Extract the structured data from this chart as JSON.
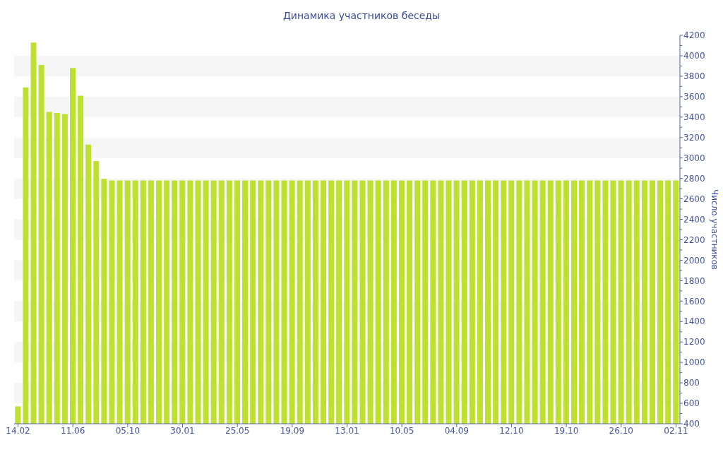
{
  "chart_data": {
    "type": "bar",
    "title": "Динамика участников беседы",
    "ylabel": "Число участников",
    "categories": [
      "14.02",
      null,
      null,
      null,
      null,
      null,
      null,
      "11.06",
      null,
      null,
      null,
      null,
      null,
      null,
      "05.10",
      null,
      null,
      null,
      null,
      null,
      null,
      "30.01",
      null,
      null,
      null,
      null,
      null,
      null,
      "25.05",
      null,
      null,
      null,
      null,
      null,
      null,
      "19.09",
      null,
      null,
      null,
      null,
      null,
      null,
      "13.01",
      null,
      null,
      null,
      null,
      null,
      null,
      "10.05",
      null,
      null,
      null,
      null,
      null,
      null,
      "04.09",
      null,
      null,
      null,
      null,
      null,
      null,
      "12.10",
      null,
      null,
      null,
      null,
      null,
      null,
      "19.10",
      null,
      null,
      null,
      null,
      null,
      null,
      "26.10",
      null,
      null,
      null,
      null,
      null,
      null,
      "02.11"
    ],
    "values": [
      570,
      3690,
      4130,
      3910,
      3450,
      3440,
      3430,
      3880,
      3610,
      3130,
      2970,
      2795,
      2780,
      2780,
      2780,
      2780,
      2780,
      2780,
      2780,
      2780,
      2780,
      2780,
      2780,
      2780,
      2780,
      2780,
      2780,
      2780,
      2780,
      2780,
      2780,
      2780,
      2780,
      2780,
      2780,
      2780,
      2780,
      2780,
      2780,
      2780,
      2780,
      2780,
      2780,
      2780,
      2780,
      2780,
      2780,
      2780,
      2780,
      2780,
      2780,
      2780,
      2780,
      2780,
      2780,
      2780,
      2780,
      2780,
      2780,
      2780,
      2780,
      2780,
      2780,
      2780,
      2780,
      2780,
      2780,
      2780,
      2780,
      2780,
      2780,
      2780,
      2780,
      2780,
      2780,
      2780,
      2780,
      2780,
      2780,
      2780,
      2780,
      2780,
      2780,
      2780,
      2780
    ],
    "color": "#bee131",
    "ylim": [
      400,
      4200
    ],
    "yticks": [
      400,
      {
        "value": 500,
        "label": null
      },
      600,
      {
        "value": 700,
        "label": null
      },
      800,
      {
        "value": 900,
        "label": null
      },
      1000,
      {
        "value": 1100,
        "label": null
      },
      1200,
      {
        "value": 1300,
        "label": null
      },
      1400,
      {
        "value": 1500,
        "label": null
      },
      1600,
      {
        "value": 1700,
        "label": null
      },
      1800,
      {
        "value": 1900,
        "label": null
      },
      2000,
      {
        "value": 2100,
        "label": null
      },
      2200,
      {
        "value": 2300,
        "label": null
      },
      2400,
      {
        "value": 2500,
        "label": null
      },
      2600,
      {
        "value": 2700,
        "label": null
      },
      2800,
      {
        "value": 2900,
        "label": null
      },
      3000,
      {
        "value": 3100,
        "label": null
      },
      3200,
      {
        "value": 3300,
        "label": null
      },
      3400,
      {
        "value": 3500,
        "label": null
      },
      3600,
      {
        "value": 3700,
        "label": null
      },
      3800,
      {
        "value": 3900,
        "label": null
      },
      4000,
      {
        "value": 4100,
        "label": null
      },
      4200
    ],
    "bands": [
      {
        "axis": "y",
        "from": 600,
        "to": 800,
        "color": "#f6f6f6"
      },
      {
        "axis": "y",
        "from": 1000,
        "to": 1200,
        "color": "#f6f6f6"
      },
      {
        "axis": "y",
        "from": 1400,
        "to": 1600,
        "color": "#f6f6f6"
      },
      {
        "axis": "y",
        "from": 1800,
        "to": 2000,
        "color": "#f6f6f6"
      },
      {
        "axis": "y",
        "from": 2200,
        "to": 2400,
        "color": "#f6f6f6"
      },
      {
        "axis": "y",
        "from": 2600,
        "to": 2800,
        "color": "#f6f6f6"
      },
      {
        "axis": "y",
        "from": 3000,
        "to": 3200,
        "color": "#f6f6f6"
      },
      {
        "axis": "y",
        "from": 3400,
        "to": 3600,
        "color": "#f6f6f6"
      },
      {
        "axis": "y",
        "from": 3800,
        "to": 4000,
        "color": "#f6f6f6"
      }
    ]
  }
}
